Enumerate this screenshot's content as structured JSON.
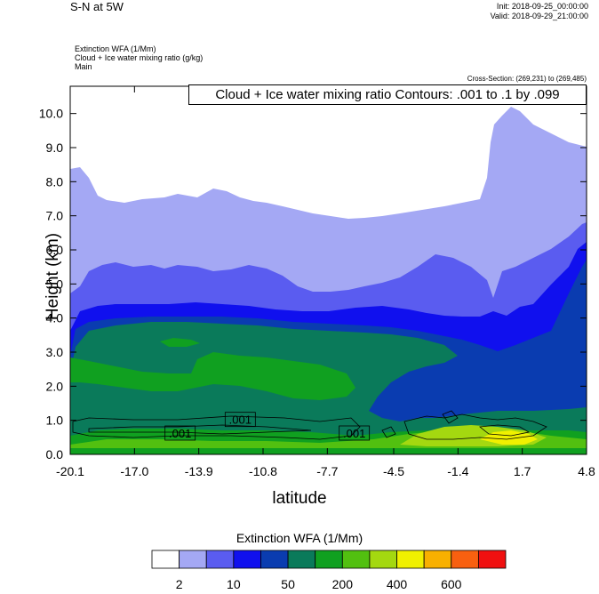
{
  "header": {
    "title": "S-N at 5W",
    "init": "Init: 2018-09-25_00:00:00",
    "valid": "Valid: 2018-09-29_21:00:00",
    "meta_lines": [
      "Extinction WFA   (1/Mm)",
      "Cloud + Ice water mixing ratio   (g/kg)",
      "Main"
    ],
    "cross_section": "Cross-Section: (269,231) to (269,485)"
  },
  "chart_data": {
    "type": "contour",
    "contour_label": "Cloud + Ice water mixing ratio Contours: .001 to .1 by .099",
    "xlabel": "latitude",
    "ylabel": "Height (km)",
    "xlim": [
      -20.1,
      4.8
    ],
    "ylim": [
      0,
      10.8
    ],
    "xticks": [
      "-20.1",
      "-17.0",
      "-13.9",
      "-10.8",
      "-7.7",
      "-4.5",
      "-1.4",
      "1.7",
      "4.8"
    ],
    "yticks": [
      "0.0",
      "1.0",
      "2.0",
      "3.0",
      "4.0",
      "5.0",
      "6.0",
      "7.0",
      "8.0",
      "9.0",
      "10.0"
    ],
    "contour_value_labels": [
      {
        "text": ".001",
        "x": -14.8,
        "y": 0.6
      },
      {
        "text": ".001",
        "x": -11.9,
        "y": 1.0
      },
      {
        "text": ".001",
        "x": -6.4,
        "y": 0.6
      }
    ],
    "colorbar": {
      "title": "Extinction WFA  (1/Mm)",
      "colors": [
        "#ffffff",
        "#a4a8f4",
        "#5a5cf0",
        "#1010ee",
        "#0a3cb0",
        "#0a7a5a",
        "#10a020",
        "#52c010",
        "#a4d810",
        "#f0f000",
        "#f8b000",
        "#f86010",
        "#f01010"
      ],
      "tick_labels": [
        "2",
        "10",
        "50",
        "200",
        "400",
        "600"
      ]
    }
  }
}
